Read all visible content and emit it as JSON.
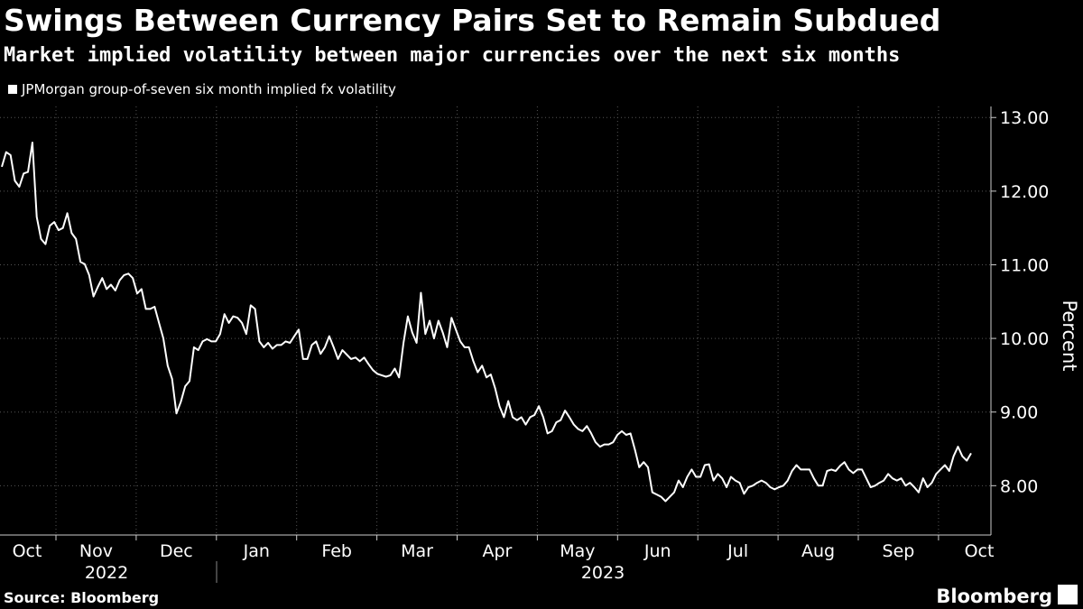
{
  "chart_data": {
    "type": "line",
    "title": "Swings Between Currency Pairs Set to Remain Subdued",
    "subtitle": "Market implied volatility between major currencies over the next six months",
    "y_label": "Percent",
    "source": "Source: Bloomberg",
    "brand": "Bloomberg",
    "categories_months": [
      "Oct",
      "Nov",
      "Dec",
      "Jan",
      "Feb",
      "Mar",
      "Apr",
      "May",
      "Jun",
      "Jul",
      "Aug",
      "Sep",
      "Oct"
    ],
    "categories_years": [
      "2022",
      "2023"
    ],
    "ylim": [
      7.33,
      13.15
    ],
    "yticks": [
      {
        "value": 8,
        "label": "8.00"
      },
      {
        "value": 9,
        "label": "9.00"
      },
      {
        "value": 10,
        "label": "10.00"
      },
      {
        "value": 11,
        "label": "11.00"
      },
      {
        "value": 12,
        "label": "12.00"
      },
      {
        "value": 13,
        "label": "13.00"
      }
    ],
    "grid": true,
    "series": [
      {
        "name": "JPMorgan group-of-seven six month implied fx volatility",
        "color": "#ffffff",
        "values": [
          12.33,
          12.53,
          12.49,
          12.14,
          12.06,
          12.24,
          12.26,
          12.66,
          11.65,
          11.35,
          11.28,
          11.53,
          11.58,
          11.47,
          11.5,
          11.7,
          11.43,
          11.35,
          11.04,
          11.01,
          10.86,
          10.57,
          10.7,
          10.82,
          10.67,
          10.73,
          10.65,
          10.79,
          10.86,
          10.88,
          10.82,
          10.61,
          10.67,
          10.4,
          10.4,
          10.43,
          10.21,
          10.0,
          9.63,
          9.45,
          8.98,
          9.14,
          9.35,
          9.42,
          9.88,
          9.84,
          9.96,
          9.99,
          9.96,
          9.96,
          10.06,
          10.33,
          10.21,
          10.3,
          10.28,
          10.21,
          10.06,
          10.45,
          10.4,
          9.96,
          9.88,
          9.94,
          9.86,
          9.91,
          9.91,
          9.96,
          9.94,
          10.03,
          10.12,
          9.72,
          9.72,
          9.91,
          9.96,
          9.79,
          9.88,
          10.03,
          9.88,
          9.72,
          9.84,
          9.78,
          9.72,
          9.74,
          9.69,
          9.74,
          9.65,
          9.57,
          9.52,
          9.5,
          9.48,
          9.5,
          9.59,
          9.47,
          9.94,
          10.3,
          10.08,
          9.94,
          10.62,
          10.06,
          10.24,
          10.0,
          10.24,
          10.08,
          9.88,
          10.28,
          10.12,
          9.96,
          9.88,
          9.88,
          9.69,
          9.54,
          9.63,
          9.47,
          9.51,
          9.32,
          9.08,
          8.93,
          9.15,
          8.93,
          8.89,
          8.93,
          8.83,
          8.93,
          8.96,
          9.08,
          8.93,
          8.71,
          8.74,
          8.86,
          8.89,
          9.02,
          8.93,
          8.83,
          8.77,
          8.74,
          8.81,
          8.71,
          8.59,
          8.53,
          8.56,
          8.56,
          8.59,
          8.69,
          8.74,
          8.69,
          8.71,
          8.49,
          8.25,
          8.32,
          8.25,
          7.91,
          7.88,
          7.85,
          7.79,
          7.85,
          7.91,
          8.07,
          7.98,
          8.12,
          8.22,
          8.12,
          8.12,
          8.28,
          8.29,
          8.07,
          8.16,
          8.1,
          7.98,
          8.12,
          8.07,
          8.04,
          7.89,
          7.98,
          8.0,
          8.04,
          8.07,
          8.04,
          7.98,
          7.95,
          7.98,
          8.0,
          8.07,
          8.2,
          8.28,
          8.22,
          8.22,
          8.22,
          8.1,
          8.0,
          8.0,
          8.2,
          8.22,
          8.2,
          8.27,
          8.32,
          8.22,
          8.17,
          8.22,
          8.22,
          8.1,
          7.98,
          8.0,
          8.04,
          8.07,
          8.16,
          8.1,
          8.07,
          8.1,
          8.0,
          8.04,
          7.98,
          7.91,
          8.1,
          7.98,
          8.04,
          8.16,
          8.22,
          8.28,
          8.2,
          8.4,
          8.53,
          8.4,
          8.34,
          8.44
        ]
      }
    ]
  }
}
